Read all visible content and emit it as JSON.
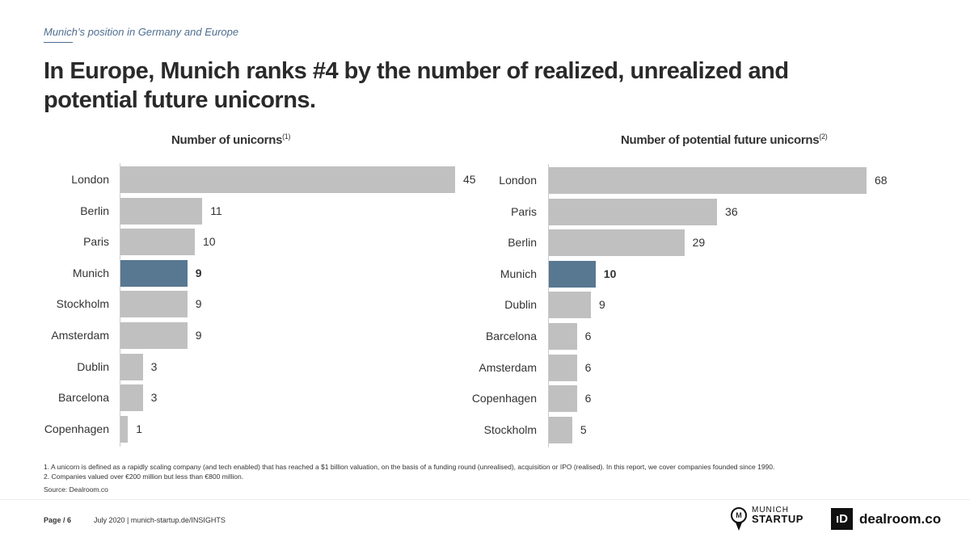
{
  "header": {
    "kicker": "Munich’s position in Germany and Europe",
    "title": "In Europe, Munich ranks #4 by the number of realized, unrealized and potential future unicorns."
  },
  "colors": {
    "highlight": "#587791",
    "bar": "#c0c0c0"
  },
  "chart_data": [
    {
      "type": "bar",
      "orientation": "horizontal",
      "title": "Number of unicorns",
      "title_note": "(1)",
      "categories": [
        "London",
        "Berlin",
        "Paris",
        "Munich",
        "Stockholm",
        "Amsterdam",
        "Dublin",
        "Barcelona",
        "Copenhagen"
      ],
      "values": [
        45,
        11,
        10,
        9,
        9,
        9,
        3,
        3,
        1
      ],
      "highlight": "Munich",
      "xlim": [
        0,
        45
      ]
    },
    {
      "type": "bar",
      "orientation": "horizontal",
      "title": "Number of potential future unicorns",
      "title_note": "(2)",
      "categories": [
        "London",
        "Paris",
        "Berlin",
        "Munich",
        "Dublin",
        "Barcelona",
        "Amsterdam",
        "Copenhagen",
        "Stockholm"
      ],
      "values": [
        68,
        36,
        29,
        10,
        9,
        6,
        6,
        6,
        5
      ],
      "highlight": "Munich",
      "xlim": [
        0,
        68
      ]
    }
  ],
  "notes": [
    "1. A unicorn is defined as a rapidly scaling company (and tech enabled) that has reached a $1 billion valuation, on the basis of a funding round (unrealised), acquisition or IPO (realised). In this report, we cover companies founded since 1990.",
    "2. Companies valued over €200 million but less than €800 million."
  ],
  "source": "Source: Dealroom.co",
  "footer": {
    "page": "Page / 6",
    "info": "July 2020 | munich-startup.de/INSIGHTS",
    "logo1_top": "MUNICH",
    "logo1_bottom": "STARTUP",
    "logo2_mark": "ıD",
    "logo2": "dealroom.co"
  }
}
